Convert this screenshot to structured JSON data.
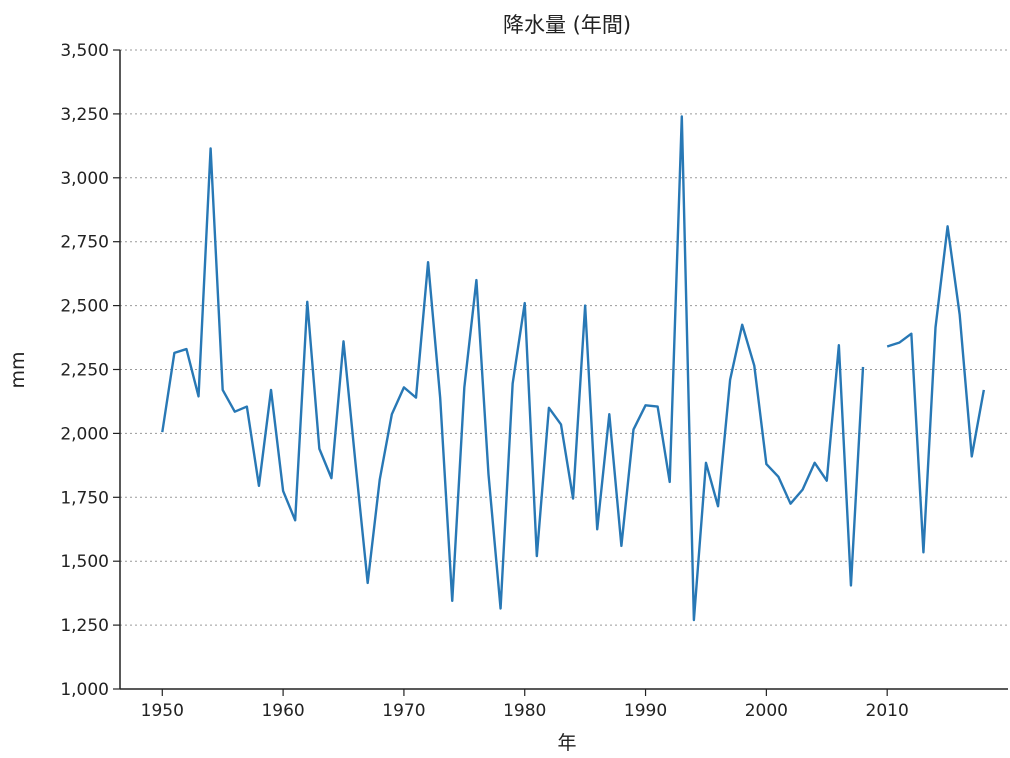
{
  "chart_data": {
    "type": "line",
    "title": "降水量 (年間)",
    "xlabel": "年",
    "ylabel": "mm",
    "xlim": [
      1946.5,
      2020
    ],
    "ylim": [
      1000,
      3500
    ],
    "x_ticks": [
      1950,
      1960,
      1970,
      1980,
      1990,
      2000,
      2010
    ],
    "x_tick_labels": [
      "1950",
      "1960",
      "1970",
      "1980",
      "1990",
      "2000",
      "2010"
    ],
    "y_ticks": [
      1000,
      1250,
      1500,
      1750,
      2000,
      2250,
      2500,
      2750,
      3000,
      3250,
      3500
    ],
    "y_tick_labels": [
      "1,000",
      "1,250",
      "1,500",
      "1,750",
      "2,000",
      "2,250",
      "2,500",
      "2,750",
      "3,000",
      "3,250",
      "3,500"
    ],
    "grid": "horizontal dotted",
    "color": "#2878b5",
    "series": [
      {
        "x": [
          1950,
          1951,
          1952,
          1953,
          1954,
          1955,
          1956,
          1957,
          1958,
          1959,
          1960,
          1961,
          1962,
          1963,
          1964,
          1965,
          1966,
          1967,
          1968,
          1969,
          1970,
          1971,
          1972,
          1973,
          1974,
          1975,
          1976,
          1977,
          1978,
          1979,
          1980,
          1981,
          1982,
          1983,
          1984,
          1985,
          1986,
          1987,
          1988,
          1989,
          1990,
          1991,
          1992,
          1993,
          1994,
          1995,
          1996,
          1997,
          1998,
          1999,
          2000,
          2001,
          2002,
          2003,
          2004,
          2005,
          2006,
          2007,
          2008,
          2009,
          2010,
          2011,
          2012,
          2013,
          2014,
          2015,
          2016,
          2017,
          2018
        ],
        "values": [
          2005,
          2315,
          2330,
          2145,
          3115,
          2170,
          2085,
          2105,
          1795,
          2170,
          1775,
          1660,
          2515,
          1940,
          1825,
          2360,
          1880,
          1415,
          1820,
          2075,
          2180,
          2140,
          2670,
          2140,
          1345,
          2180,
          2600,
          1840,
          1315,
          2195,
          2510,
          1520,
          2100,
          2035,
          1745,
          2500,
          1625,
          2075,
          1560,
          2015,
          2110,
          2105,
          1810,
          3240,
          1270,
          1885,
          1715,
          2210,
          2425,
          2265,
          1880,
          1830,
          1725,
          1780,
          1885,
          1815,
          2345,
          1405,
          2260,
          null,
          2340,
          2355,
          2390,
          1535,
          2415,
          2810,
          2465,
          1910,
          2170
        ]
      }
    ]
  }
}
